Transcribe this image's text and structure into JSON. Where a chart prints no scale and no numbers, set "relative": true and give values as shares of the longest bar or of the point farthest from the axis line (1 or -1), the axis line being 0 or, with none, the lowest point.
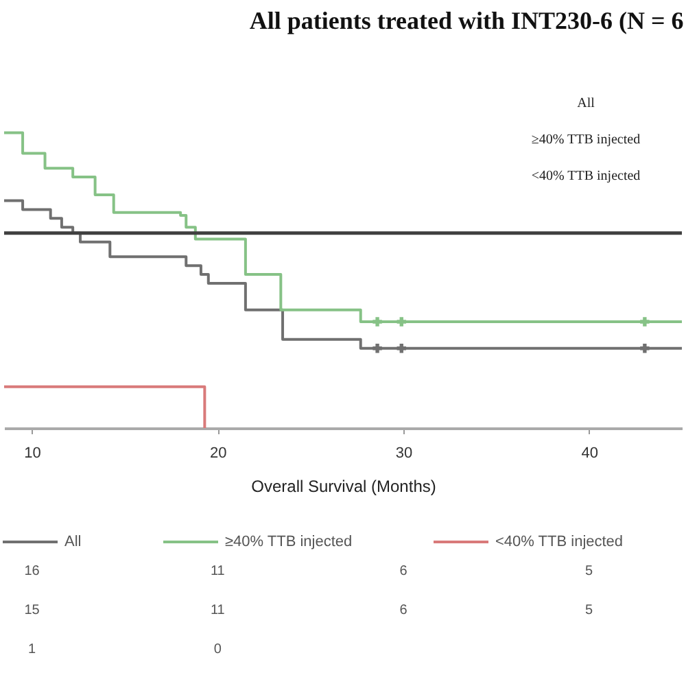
{
  "chart_data": {
    "type": "step",
    "title": "All patients treated with INT230-6 (N = 6",
    "xlabel": "Overall Survival (Months)",
    "relative": true,
    "xlim": [
      8.5,
      45
    ],
    "xticks": [
      10,
      20,
      30,
      40
    ],
    "grid": false,
    "legend": "bottom",
    "line_style": "solid",
    "series": [
      {
        "name": "All",
        "color": "#707070",
        "x": [
          8.5,
          9.5,
          11.0,
          11.6,
          12.2,
          12.6,
          14.2,
          18.3,
          19.1,
          19.5,
          21.5,
          23.5,
          27.7,
          45
        ],
        "values": [
          0.77,
          0.74,
          0.71,
          0.68,
          0.66,
          0.63,
          0.58,
          0.55,
          0.52,
          0.49,
          0.4,
          0.3,
          0.27,
          0.27
        ]
      },
      {
        "name": "≥40% TTB injected",
        "color": "#86c286",
        "x": [
          8.5,
          9.5,
          10.7,
          12.2,
          13.4,
          14.4,
          18.0,
          18.3,
          18.8,
          21.5,
          23.4,
          27.7,
          45
        ],
        "values": [
          1.0,
          0.93,
          0.88,
          0.85,
          0.79,
          0.73,
          0.72,
          0.68,
          0.64,
          0.52,
          0.4,
          0.36,
          0.36
        ]
      },
      {
        "name": "<40% TTB injected",
        "color": "#d97a7a",
        "x": [
          8.5,
          19.3
        ],
        "values": [
          0.14,
          0
        ]
      },
      {
        "type": "scatter",
        "marker": "cross",
        "color": "#86c286",
        "x": [
          28.6,
          29.9,
          43.0
        ],
        "values": [
          0.36,
          0.36,
          0.36
        ]
      },
      {
        "type": "scatter",
        "marker": "cross",
        "color": "#707070",
        "x": [
          28.6,
          29.9,
          43.0
        ],
        "values": [
          0.27,
          0.27,
          0.27
        ]
      }
    ],
    "ref_lines": [
      {
        "axis": "y",
        "value": 0.66,
        "color": "#404040"
      }
    ],
    "annotations": [
      "All",
      "≥40% TTB injected",
      "<40% TTB injected",
      "16",
      "11",
      "6",
      "5",
      "15",
      "11",
      "6",
      "5",
      "1",
      "0"
    ]
  }
}
